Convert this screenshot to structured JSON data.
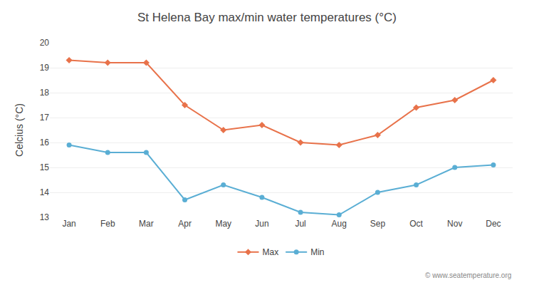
{
  "chart_data": {
    "type": "line",
    "title": "St Helena Bay max/min water temperatures (°C)",
    "ylabel": "Celcius (°C)",
    "categories": [
      "Jan",
      "Feb",
      "Mar",
      "Apr",
      "May",
      "Jun",
      "Jul",
      "Aug",
      "Sep",
      "Oct",
      "Nov",
      "Dec"
    ],
    "series": [
      {
        "name": "Max",
        "color": "#E8724A",
        "marker": "diamond",
        "values": [
          19.3,
          19.2,
          19.2,
          17.5,
          16.5,
          16.7,
          16.0,
          15.9,
          16.3,
          17.4,
          17.7,
          18.5
        ]
      },
      {
        "name": "Min",
        "color": "#5aaed4",
        "marker": "circle",
        "values": [
          15.9,
          15.6,
          15.6,
          13.7,
          14.3,
          13.8,
          13.2,
          13.1,
          14.0,
          14.3,
          15.0,
          15.1
        ]
      }
    ],
    "ylim": [
      13,
      20
    ],
    "yticks": [
      13,
      14,
      15,
      16,
      17,
      18,
      19,
      20
    ],
    "grid": true,
    "legend": "bottom",
    "annotations": [
      "© www.seatemperature.org"
    ]
  }
}
